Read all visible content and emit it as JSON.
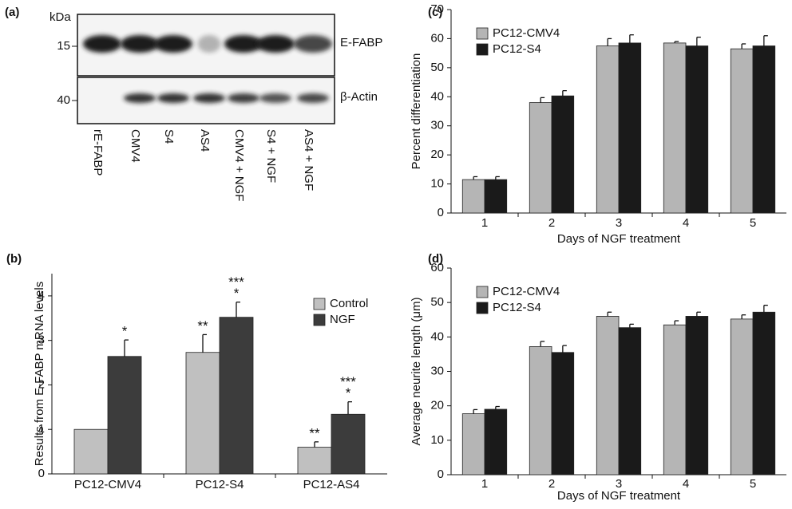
{
  "blot": {
    "panel_label": "(a)",
    "unit": "kDa",
    "markers": [
      15,
      40
    ],
    "bands": [
      "E-FABP",
      "β-Actin"
    ],
    "lanes": [
      "rE-FABP",
      "CMV4",
      "S4",
      "AS4",
      "CMV4 + NGF",
      "S4 + NGF",
      "AS4 + NGF"
    ]
  },
  "chart_data": [
    {
      "type": "bar",
      "panel_label": "(b)",
      "y_label": "Results from E-FABP mRNA levels",
      "categories": [
        "PC12-CMV4",
        "PC12-S4",
        "PC12-AS4"
      ],
      "series": [
        {
          "name": "Control",
          "color": "#c0c0c0",
          "values": [
            1.0,
            2.73,
            0.6
          ],
          "errors": [
            null,
            0.4,
            0.12
          ],
          "annotations": [
            null,
            [
              "**"
            ],
            [
              "**"
            ]
          ]
        },
        {
          "name": "NGF",
          "color": "#3c3c3c",
          "values": [
            2.64,
            3.52,
            1.34
          ],
          "errors": [
            0.37,
            0.34,
            0.28
          ],
          "annotations": [
            [
              "*"
            ],
            [
              "***",
              "*"
            ],
            [
              "***",
              "*"
            ]
          ]
        }
      ],
      "ylim": [
        0,
        4.5
      ],
      "yticks": [
        0,
        1,
        2,
        3,
        4
      ],
      "legend": "center right"
    },
    {
      "type": "bar",
      "panel_label": "(c)",
      "x_label": "Days of NGF treatment",
      "y_label": "Percent differentiation",
      "categories": [
        "1",
        "2",
        "3",
        "4",
        "5"
      ],
      "series": [
        {
          "name": "PC12-CMV4",
          "color": "#b5b5b5",
          "values": [
            11.5,
            38,
            57.5,
            58.5,
            56.5
          ],
          "errors": [
            1,
            1.7,
            2.5,
            0.5,
            1.7
          ]
        },
        {
          "name": "PC12-S4",
          "color": "#1a1a1a",
          "values": [
            11.5,
            40.3,
            58.5,
            57.5,
            57.5
          ],
          "errors": [
            1,
            1.8,
            2.8,
            3,
            3.5
          ]
        }
      ],
      "ylim": [
        0,
        70
      ],
      "yticks": [
        0,
        10,
        20,
        30,
        40,
        50,
        60,
        70
      ],
      "legend": "upper left"
    },
    {
      "type": "bar",
      "panel_label": "(d)",
      "x_label": "Days of NGF treatment",
      "y_label": "Average neurite length (μm)",
      "categories": [
        "1",
        "2",
        "3",
        "4",
        "5"
      ],
      "series": [
        {
          "name": "PC12-CMV4",
          "color": "#b5b5b5",
          "values": [
            17.7,
            37.2,
            46,
            43.5,
            45.2
          ],
          "errors": [
            1.2,
            1.5,
            1.2,
            1.2,
            1.2
          ]
        },
        {
          "name": "PC12-S4",
          "color": "#1a1a1a",
          "values": [
            19,
            35.5,
            42.7,
            46,
            47.2
          ],
          "errors": [
            0.8,
            2,
            1,
            1.2,
            2
          ]
        }
      ],
      "ylim": [
        0,
        60
      ],
      "yticks": [
        0,
        10,
        20,
        30,
        40,
        50,
        60
      ],
      "legend": "upper left"
    }
  ]
}
